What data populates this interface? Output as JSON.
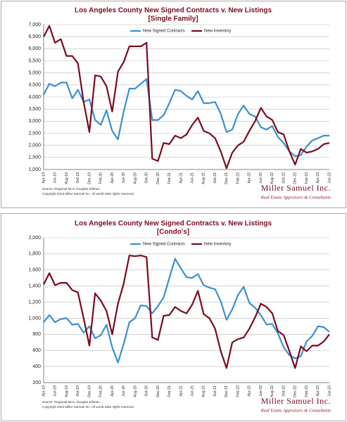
{
  "chart_data": [
    {
      "type": "line",
      "title": "Los Angeles County New Signed Contracts v. New Listings",
      "subtitle": "[Single Family]",
      "categories": [
        "Apr-19",
        null,
        "Jun-19",
        null,
        "Aug-19",
        null,
        "Oct-19",
        null,
        "Dec-19",
        null,
        "Feb-20",
        null,
        "Apr-20",
        null,
        "Jun-20",
        null,
        "Aug-20",
        null,
        "Oct-20",
        null,
        "Dec-20",
        null,
        "Feb-21",
        null,
        "Apr-21",
        null,
        "Jun-21",
        null,
        "Aug-21",
        null,
        "Oct-21",
        null,
        "Dec-21",
        null,
        "Feb-22",
        null,
        "Apr-22",
        null,
        "Jun-22",
        null,
        "Aug-22",
        null,
        "Oct-22",
        null,
        "Dec-22",
        null,
        "Feb-23",
        null,
        "Apr-23",
        null,
        "Jun-23"
      ],
      "series": [
        {
          "name": "New Signed Contracts",
          "color": "#3a8fd0",
          "values": [
            4100,
            4550,
            4450,
            4600,
            4600,
            3950,
            4300,
            3800,
            3900,
            3050,
            2850,
            3450,
            2600,
            2250,
            3400,
            4350,
            4350,
            4550,
            4750,
            3050,
            3050,
            3250,
            3750,
            4300,
            4250,
            4050,
            3900,
            4250,
            3750,
            3750,
            3800,
            3300,
            2550,
            2650,
            3300,
            3650,
            3300,
            3200,
            2750,
            2650,
            2800,
            2350,
            2100,
            1750,
            1550,
            1600,
            1950,
            2200,
            2300,
            2400,
            2400
          ]
        },
        {
          "name": "New Inventory",
          "color": "#7a0a1e",
          "values": [
            6500,
            6950,
            6250,
            6400,
            5700,
            5700,
            5400,
            3800,
            2550,
            4900,
            4850,
            4450,
            3400,
            5050,
            5450,
            6100,
            6100,
            6100,
            6250,
            1450,
            1350,
            2100,
            2050,
            2400,
            2300,
            2450,
            2850,
            3150,
            2600,
            2500,
            2300,
            1750,
            1050,
            1700,
            2000,
            2150,
            2600,
            3000,
            3550,
            3200,
            3050,
            2550,
            2450,
            1750,
            1200,
            1850,
            1700,
            1750,
            1850,
            2050,
            2100
          ]
        }
      ],
      "ylim": [
        1000,
        7000
      ],
      "yticks": [
        {
          "value": 1000,
          "label": "1,000"
        },
        {
          "value": 1500,
          "label": "1,500"
        },
        {
          "value": 2000,
          "label": "2,000"
        },
        {
          "value": 2500,
          "label": "2,500"
        },
        {
          "value": 3000,
          "label": "3,000"
        },
        {
          "value": 3500,
          "label": "3,500"
        },
        {
          "value": 4000,
          "label": "4,000"
        },
        {
          "value": 4500,
          "label": "4,500"
        },
        {
          "value": 5000,
          "label": "5,000"
        },
        {
          "value": 5500,
          "label": "5,500"
        },
        {
          "value": 6000,
          "label": "6,000"
        },
        {
          "value": 6500,
          "label": "6,500"
        },
        {
          "value": 7000,
          "label": "7,000"
        }
      ],
      "grid": true,
      "legend": "top",
      "source": "Source: Regional MLS, Douglas Elliman",
      "copyright": "Copyright 2023 Miller Samuel Inc. All world wide rights reserved.",
      "brand": "Miller Samuel Inc.",
      "brand_tagline": "Real Estate Appraisers & Consultants"
    },
    {
      "type": "line",
      "title": "Los Angeles County New Signed Contracts v. New Listings",
      "subtitle": "[Condo's]",
      "categories": [
        "Apr-19",
        null,
        "Jun-19",
        null,
        "Aug-19",
        null,
        "Oct-19",
        null,
        "Dec-19",
        null,
        "Feb-20",
        null,
        "Apr-20",
        null,
        "Jun-20",
        null,
        "Aug-20",
        null,
        "Oct-20",
        null,
        "Dec-20",
        null,
        "Feb-21",
        null,
        "Apr-21",
        null,
        "Jun-21",
        null,
        "Aug-21",
        null,
        "Oct-21",
        null,
        "Dec-21",
        null,
        "Feb-22",
        null,
        "Apr-22",
        null,
        "Jun-22",
        null,
        "Aug-22",
        null,
        "Oct-22",
        null,
        "Dec-22",
        null,
        "Feb-23",
        null,
        "Apr-23",
        null,
        "Jun-23"
      ],
      "series": [
        {
          "name": "New Signed Contracts",
          "color": "#3a8fd0",
          "values": [
            950,
            1040,
            950,
            990,
            1000,
            920,
            930,
            820,
            900,
            750,
            790,
            920,
            640,
            450,
            680,
            950,
            1000,
            1160,
            1150,
            1060,
            1150,
            1260,
            1500,
            1740,
            1620,
            1510,
            1500,
            1550,
            1410,
            1380,
            1360,
            1210,
            980,
            1110,
            1290,
            1390,
            1190,
            1130,
            1040,
            920,
            930,
            810,
            640,
            540,
            500,
            530,
            710,
            780,
            900,
            890,
            830
          ]
        },
        {
          "name": "New Inventory",
          "color": "#7a0a1e",
          "values": [
            1420,
            1560,
            1410,
            1440,
            1440,
            1350,
            1320,
            1000,
            660,
            1310,
            1220,
            1090,
            800,
            1180,
            1430,
            1780,
            1770,
            1780,
            1760,
            760,
            730,
            1030,
            1040,
            1140,
            1090,
            1060,
            1170,
            1340,
            1050,
            1000,
            870,
            590,
            380,
            700,
            740,
            760,
            870,
            1010,
            1180,
            1140,
            1060,
            840,
            790,
            590,
            380,
            650,
            590,
            660,
            660,
            710,
            800
          ]
        }
      ],
      "ylim": [
        200,
        2000
      ],
      "yticks": [
        200,
        400,
        600,
        800,
        {
          "value": 1000,
          "label": "1,000"
        },
        {
          "value": 1200,
          "label": "1,200"
        },
        {
          "value": 1400,
          "label": "1,400"
        },
        {
          "value": 1600,
          "label": "1,600"
        },
        {
          "value": 1800,
          "label": "1,800"
        },
        {
          "value": 2000,
          "label": "2,000"
        }
      ],
      "grid": true,
      "legend": "top",
      "source": "Source: Regional MLS, Douglas Elliman",
      "copyright": "Copyright 2023 Miller Samuel Inc. All world wide rights reserved.",
      "brand": "Miller Samuel Inc.",
      "brand_tagline": "Real Estate Appraisers & Consultants"
    }
  ]
}
